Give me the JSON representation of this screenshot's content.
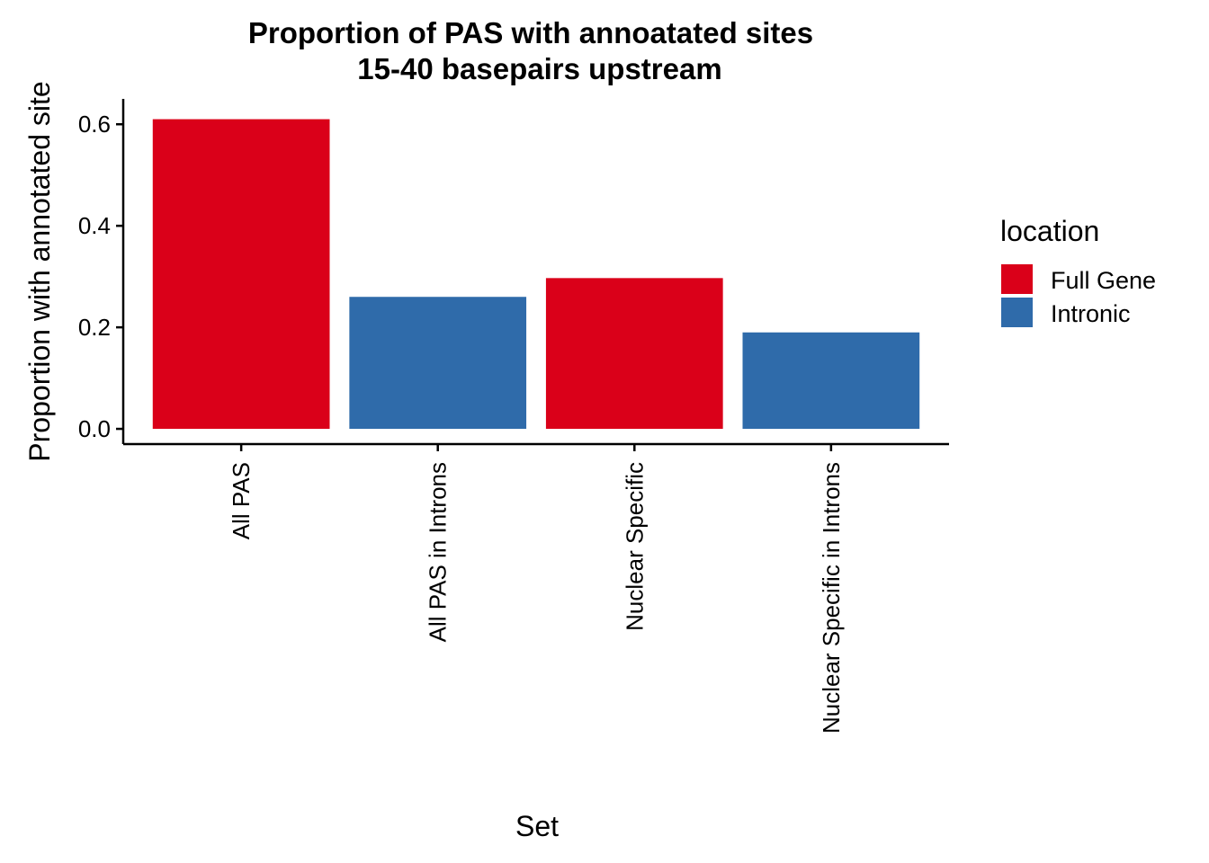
{
  "chart_data": {
    "type": "bar",
    "title": "Proportion of PAS with annoatated sites",
    "subtitle": "15-40 basepairs upstream",
    "xlabel": "Set",
    "ylabel": "Proportion with annotated site",
    "categories": [
      "All PAS",
      "All PAS in Introns",
      "Nuclear Specific",
      "Nuclear Specific in Introns"
    ],
    "values": [
      0.61,
      0.26,
      0.297,
      0.19
    ],
    "groups": [
      "Full Gene",
      "Intronic",
      "Full Gene",
      "Intronic"
    ],
    "ylim": [
      -0.03,
      0.65
    ],
    "yticks": [
      0.0,
      0.2,
      0.4,
      0.6
    ],
    "ytick_labels": [
      "0.0",
      "0.2",
      "0.4",
      "0.6"
    ],
    "grid": false,
    "legend": {
      "title": "location",
      "position": "right",
      "entries": [
        {
          "name": "Full Gene",
          "color": "#DA0019"
        },
        {
          "name": "Intronic",
          "color": "#2F6BAA"
        }
      ]
    }
  }
}
